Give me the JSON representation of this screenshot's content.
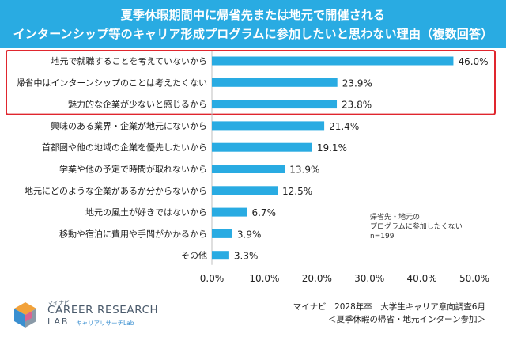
{
  "title_line1": "夏季休暇期間中に帰省先または地元で開催される",
  "title_line2": "インターンシップ等のキャリア形成プログラムに参加したいと思わない理由（複数回答）",
  "colors": {
    "header": "#29abe2",
    "bar": "#29abe2",
    "highlight": "#e0262e"
  },
  "chart_data": {
    "type": "bar",
    "orientation": "horizontal",
    "categories": [
      "地元で就職することを考えていないから",
      "帰省中はインターンシップのことは考えたくない",
      "魅力的な企業が少ないと感じるから",
      "興味のある業界・企業が地元にないから",
      "首都圏や他の地域の企業を優先したいから",
      "学業や他の予定で時間が取れないから",
      "地元にどのような企業があるか分からないから",
      "地元の風土が好きではないから",
      "移動や宿泊に費用や手間がかかるから",
      "その他"
    ],
    "values": [
      46.0,
      23.9,
      23.8,
      21.4,
      19.1,
      13.9,
      12.5,
      6.7,
      3.9,
      3.3
    ],
    "value_labels": [
      "46.0%",
      "23.9%",
      "23.8%",
      "21.4%",
      "19.1%",
      "13.9%",
      "12.5%",
      "6.7%",
      "3.9%",
      "3.3%"
    ],
    "xlim": [
      0,
      50
    ],
    "xticks": [
      0,
      10,
      20,
      30,
      40,
      50
    ],
    "xtick_labels": [
      "0.0%",
      "10.0%",
      "20.0%",
      "30.0%",
      "40.0%",
      "50.0%"
    ],
    "highlighted_count": 3,
    "grid": false
  },
  "note_lines": [
    "帰省先・地元の",
    "プログラムに参加したくない",
    "n=199"
  ],
  "logo": {
    "top": "マイナビ",
    "main": "CAREER RESEARCH",
    "lab": "LAB",
    "sub": "キャリアリサーチLab"
  },
  "source_line1": "マイナビ　2028年卒　大学生キャリア意向調査6月",
  "source_line2": "＜夏季休暇の帰省・地元インターン参加＞"
}
